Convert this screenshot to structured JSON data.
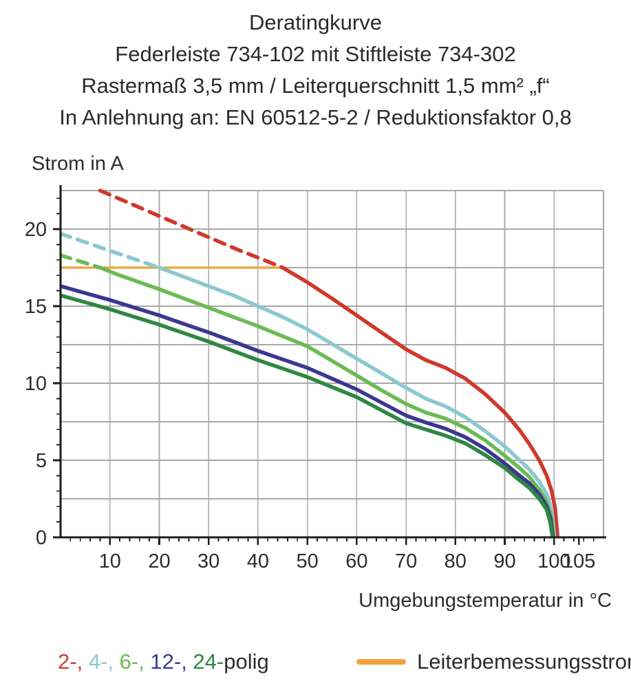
{
  "title": {
    "line1": "Deratingkurve",
    "line2": "Federleiste 734-102 mit Stiftleiste 734-302",
    "line3": "Rastermaß 3,5 mm / Leiterquerschnitt 1,5 mm² „f“",
    "line4": "In Anlehnung an: EN 60512-5-2 / Reduktionsfaktor 0,8"
  },
  "legend": {
    "poles": [
      {
        "id": "2",
        "text": "2-, ",
        "color": "#ce392c"
      },
      {
        "id": "4",
        "text": "4-, ",
        "color": "#8bc8cf"
      },
      {
        "id": "6",
        "text": "6-, ",
        "color": "#6cba54"
      },
      {
        "id": "12",
        "text": "12-, ",
        "color": "#3a3890"
      },
      {
        "id": "24",
        "text": "24-",
        "color": "#2f8742"
      }
    ],
    "poles_suffix": "polig",
    "rated_current_label": "Leiterbemessungsstrom",
    "rated_current_color": "#f0a23c"
  },
  "chart_data": {
    "type": "line",
    "x_label": "Umgebungstemperatur in °C",
    "y_label": "Strom in A",
    "x_range": [
      0,
      110
    ],
    "y_range": [
      0,
      22.5
    ],
    "x_major_ticks": [
      10,
      20,
      30,
      40,
      50,
      60,
      70,
      80,
      90,
      100,
      105
    ],
    "x_minor_step": 2,
    "x_minor_max": 108,
    "y_major_ticks": [
      0,
      5,
      10,
      15,
      20
    ],
    "y_minor_step": 1,
    "y_minor_max": 22,
    "x_gridlines": [
      10,
      20,
      30,
      40,
      50,
      60,
      70,
      80,
      90,
      100,
      110
    ],
    "y_gridlines": [
      2.5,
      5,
      7.5,
      10,
      12.5,
      15,
      17.5,
      20,
      22.5
    ],
    "grid_on": true,
    "grid_color": "#a8a8a8",
    "axis_color": "#1e1e1e",
    "rated_current": {
      "label": "Leiterbemessungsstrom",
      "value": 17.5,
      "x_start": 0,
      "x_end": 45,
      "color": "#efa845"
    },
    "dashed_meaning": "curve section above rated conductor current (17.5 A) is dashed",
    "series": [
      {
        "name": "2-polig",
        "color": "#ce392c",
        "dashed_points": [
          [
            8,
            22.5
          ],
          [
            12,
            21.95
          ],
          [
            16,
            21.4
          ],
          [
            20,
            20.85
          ],
          [
            24,
            20.3
          ],
          [
            28,
            19.75
          ],
          [
            32,
            19.2
          ],
          [
            36,
            18.65
          ],
          [
            40,
            18.15
          ],
          [
            45,
            17.5
          ]
        ],
        "solid_points": [
          [
            45,
            17.5
          ],
          [
            50,
            16.55
          ],
          [
            55,
            15.5
          ],
          [
            60,
            14.4
          ],
          [
            65,
            13.3
          ],
          [
            70,
            12.2
          ],
          [
            74,
            11.5
          ],
          [
            78,
            11.0
          ],
          [
            82,
            10.3
          ],
          [
            86,
            9.3
          ],
          [
            90,
            8.1
          ],
          [
            93,
            6.95
          ],
          [
            95,
            6.05
          ],
          [
            97,
            5.0
          ],
          [
            98.5,
            4.0
          ],
          [
            99.5,
            3.0
          ],
          [
            100.2,
            1.9
          ],
          [
            100.7,
            0
          ]
        ]
      },
      {
        "name": "4-polig",
        "color": "#8bc8cf",
        "dashed_points": [
          [
            0,
            19.7
          ],
          [
            5,
            19.15
          ],
          [
            10,
            18.6
          ],
          [
            15,
            18.05
          ],
          [
            20,
            17.5
          ]
        ],
        "solid_points": [
          [
            20,
            17.5
          ],
          [
            25,
            16.9
          ],
          [
            30,
            16.3
          ],
          [
            35,
            15.7
          ],
          [
            40,
            15.0
          ],
          [
            45,
            14.3
          ],
          [
            50,
            13.5
          ],
          [
            55,
            12.55
          ],
          [
            60,
            11.6
          ],
          [
            65,
            10.65
          ],
          [
            70,
            9.7
          ],
          [
            74,
            9.0
          ],
          [
            78,
            8.5
          ],
          [
            82,
            7.8
          ],
          [
            86,
            6.9
          ],
          [
            90,
            5.9
          ],
          [
            93,
            5.0
          ],
          [
            95,
            4.4
          ],
          [
            97,
            3.6
          ],
          [
            98.5,
            2.8
          ],
          [
            99.5,
            1.8
          ],
          [
            100.1,
            0
          ]
        ]
      },
      {
        "name": "6-polig",
        "color": "#6cba54",
        "dashed_points": [
          [
            0,
            18.3
          ],
          [
            4,
            17.9
          ],
          [
            8,
            17.5
          ]
        ],
        "solid_points": [
          [
            8,
            17.5
          ],
          [
            12,
            17.0
          ],
          [
            16,
            16.55
          ],
          [
            20,
            16.1
          ],
          [
            25,
            15.5
          ],
          [
            30,
            14.9
          ],
          [
            35,
            14.3
          ],
          [
            40,
            13.7
          ],
          [
            45,
            13.05
          ],
          [
            50,
            12.4
          ],
          [
            55,
            11.45
          ],
          [
            60,
            10.5
          ],
          [
            65,
            9.55
          ],
          [
            70,
            8.65
          ],
          [
            74,
            8.1
          ],
          [
            78,
            7.7
          ],
          [
            82,
            7.1
          ],
          [
            86,
            6.3
          ],
          [
            90,
            5.3
          ],
          [
            93,
            4.5
          ],
          [
            95,
            3.9
          ],
          [
            97,
            3.1
          ],
          [
            98.5,
            2.3
          ],
          [
            99.4,
            1.4
          ],
          [
            99.9,
            0
          ]
        ]
      },
      {
        "name": "12-polig",
        "color": "#3a3890",
        "solid_points": [
          [
            0,
            16.3
          ],
          [
            5,
            15.85
          ],
          [
            10,
            15.4
          ],
          [
            15,
            14.9
          ],
          [
            20,
            14.4
          ],
          [
            25,
            13.85
          ],
          [
            30,
            13.3
          ],
          [
            35,
            12.7
          ],
          [
            40,
            12.1
          ],
          [
            45,
            11.55
          ],
          [
            50,
            11.0
          ],
          [
            55,
            10.3
          ],
          [
            60,
            9.6
          ],
          [
            65,
            8.75
          ],
          [
            70,
            7.9
          ],
          [
            74,
            7.45
          ],
          [
            78,
            7.05
          ],
          [
            82,
            6.5
          ],
          [
            86,
            5.75
          ],
          [
            90,
            4.8
          ],
          [
            93,
            4.0
          ],
          [
            95,
            3.5
          ],
          [
            97,
            2.8
          ],
          [
            98.5,
            2.0
          ],
          [
            99.3,
            1.2
          ],
          [
            99.8,
            0
          ]
        ]
      },
      {
        "name": "24-polig",
        "color": "#2f8742",
        "solid_points": [
          [
            0,
            15.7
          ],
          [
            5,
            15.25
          ],
          [
            10,
            14.8
          ],
          [
            15,
            14.3
          ],
          [
            20,
            13.8
          ],
          [
            25,
            13.25
          ],
          [
            30,
            12.7
          ],
          [
            35,
            12.1
          ],
          [
            40,
            11.5
          ],
          [
            45,
            10.95
          ],
          [
            50,
            10.4
          ],
          [
            55,
            9.75
          ],
          [
            60,
            9.1
          ],
          [
            65,
            8.25
          ],
          [
            70,
            7.4
          ],
          [
            74,
            7.0
          ],
          [
            78,
            6.6
          ],
          [
            82,
            6.1
          ],
          [
            86,
            5.35
          ],
          [
            90,
            4.5
          ],
          [
            93,
            3.7
          ],
          [
            95,
            3.2
          ],
          [
            97,
            2.5
          ],
          [
            98.5,
            1.8
          ],
          [
            99.2,
            1.0
          ],
          [
            99.7,
            0
          ]
        ]
      }
    ]
  }
}
